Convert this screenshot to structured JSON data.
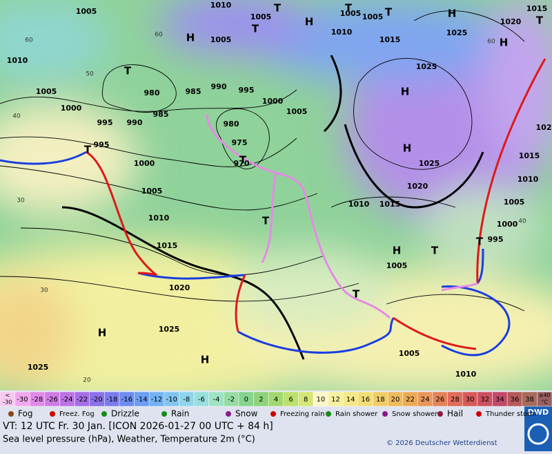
{
  "map": {
    "pressure_labels": [
      "1005",
      "1010",
      "1005",
      "1005",
      "1005",
      "1010",
      "1005",
      "1015",
      "1025",
      "1020",
      "1015",
      "1010",
      "1025",
      "1005",
      "1000",
      "980",
      "985",
      "990",
      "995",
      "1000",
      "1005",
      "995",
      "990",
      "985",
      "980",
      "975",
      "970",
      "995",
      "1000",
      "1025",
      "1020",
      "1015",
      "1010",
      "1005",
      "1010",
      "1015",
      "1010",
      "1015",
      "1005",
      "1000",
      "995",
      "1005",
      "1020",
      "1025",
      "1025",
      "1005",
      "1010",
      "102"
    ],
    "temperature_labels": [
      "60",
      "50",
      "60",
      "40",
      "30",
      "30",
      "20",
      "60",
      "40"
    ],
    "centers": [
      "H",
      "T",
      "T",
      "T",
      "T",
      "H",
      "H",
      "H",
      "T",
      "T",
      "H",
      "T",
      "T",
      "H",
      "H",
      "H",
      "H",
      "T",
      "T",
      "T",
      "T"
    ]
  },
  "legend": {
    "temperature_low": [
      "<",
      "-30"
    ],
    "temperatures": [
      -30,
      -28,
      -26,
      -24,
      -22,
      -20,
      -18,
      -16,
      -14,
      -12,
      -10,
      -8,
      -6,
      -4,
      -2,
      0,
      2,
      4,
      6,
      8,
      10,
      12,
      14,
      16,
      18,
      20,
      22,
      24,
      26,
      28,
      30,
      32,
      34,
      36,
      38
    ],
    "temperature_high": [
      "≥40",
      "°C"
    ],
    "symbols": [
      "Fog",
      "Freez. Fog",
      "Drizzle",
      "Rain",
      "Snow",
      "Freezing rain",
      "Rain shower",
      "Snow shower",
      "Hail",
      "Thunder storm"
    ]
  },
  "footer": {
    "valid_time": "VT: 12 UTC Fr.  30 Jan. [ICON 2026-01-27  00 UTC + 84 h]",
    "description": "Sea level pressure (hPa), Weather, Temperature 2m (°C)",
    "copyright": "© 2026 Deutscher Wetterdienst",
    "logo": "DWD"
  }
}
